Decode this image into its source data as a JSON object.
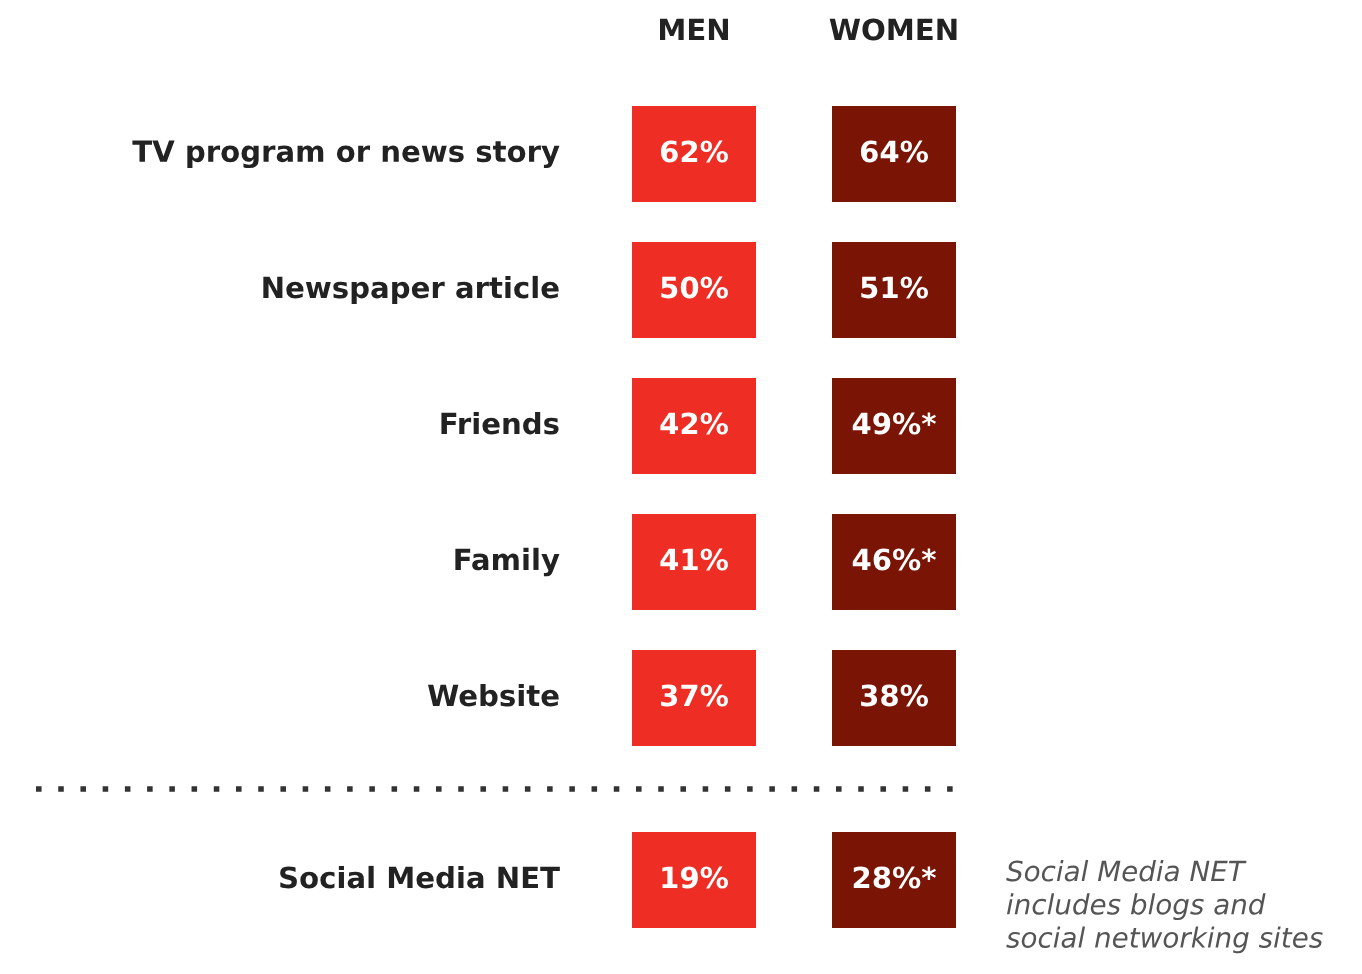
{
  "chart_data": {
    "type": "other",
    "categories": [
      "TV program or news story",
      "Newspaper article",
      "Friends",
      "Family",
      "Website",
      "Social Media NET"
    ],
    "series": [
      {
        "name": "MEN",
        "color": "#ee2e24",
        "values": [
          62,
          50,
          42,
          41,
          37,
          19
        ],
        "value_labels": [
          "62%",
          "50%",
          "42%",
          "41%",
          "37%",
          "19%"
        ]
      },
      {
        "name": "WOMEN",
        "color": "#7a1506",
        "values": [
          64,
          51,
          49,
          46,
          38,
          28
        ],
        "value_labels": [
          "64%",
          "51%",
          "49%*",
          "46%*",
          "38%",
          "28%*"
        ]
      }
    ],
    "annotations": [
      "Social Media NET\nincludes blogs and\nsocial networking sites"
    ]
  }
}
